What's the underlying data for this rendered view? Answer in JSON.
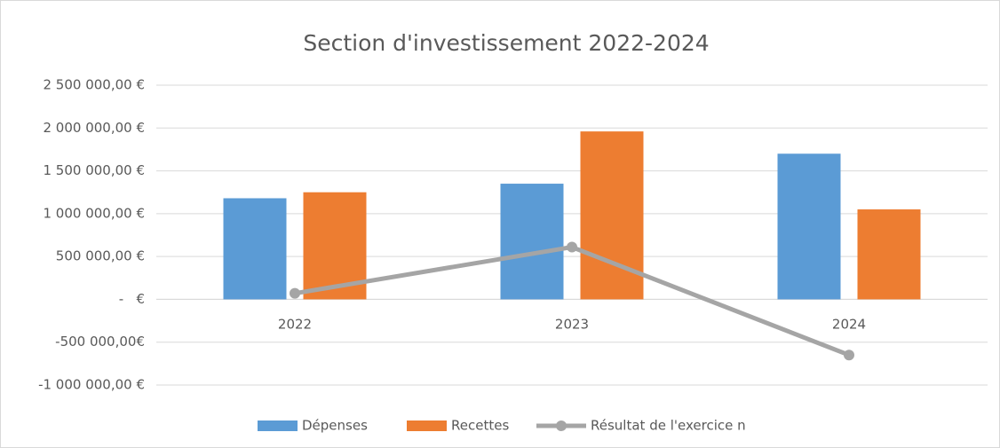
{
  "chart_data": {
    "type": "bar",
    "title": "Section d'investissement 2022-2024",
    "categories": [
      "2022",
      "2023",
      "2024"
    ],
    "series": [
      {
        "name": "Dépenses",
        "color": "#5b9bd5",
        "values": [
          1180000,
          1350000,
          1700000
        ]
      },
      {
        "name": "Recettes",
        "color": "#ed7d31",
        "values": [
          1250000,
          1960000,
          1050000
        ]
      },
      {
        "name": "Résultat de l'exercice n",
        "type": "line",
        "color": "#a5a5a5",
        "values": [
          70000,
          610000,
          -650000
        ]
      }
    ],
    "ylim": [
      -1000000,
      2500000
    ],
    "yticks": [
      {
        "value": -1000000,
        "label": "-1 000 000,00 €"
      },
      {
        "value": -500000,
        "label": "-500 000,00€"
      },
      {
        "value": 0,
        "label": "-   €"
      },
      {
        "value": 500000,
        "label": "500 000,00 €"
      },
      {
        "value": 1000000,
        "label": "1 000 000,00 €"
      },
      {
        "value": 1500000,
        "label": "1 500 000,00 €"
      },
      {
        "value": 2000000,
        "label": "2 000 000,00 €"
      },
      {
        "value": 2500000,
        "label": "2 500 000,00 €"
      }
    ],
    "grid": true,
    "legend": "bottom"
  }
}
